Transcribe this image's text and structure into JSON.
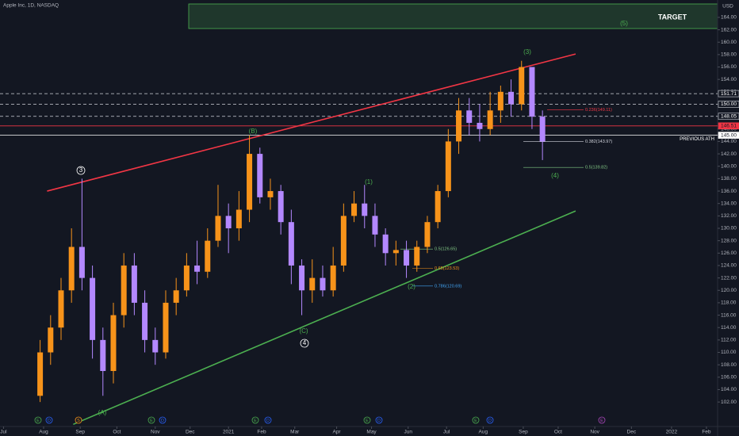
{
  "chart_data": {
    "type": "candlestick",
    "title": "Apple Inc, 1D, NASDAQ",
    "currency": "USD",
    "up_color": "#f7931a",
    "down_color": "#b388ff",
    "candles": {
      "x": [
        23,
        29,
        35,
        41,
        47,
        53,
        59,
        65,
        71,
        77,
        83,
        89,
        95,
        101,
        107,
        113,
        119,
        125,
        131,
        137,
        143,
        149,
        155,
        161,
        167,
        173,
        179,
        185,
        191,
        197,
        203,
        209,
        215,
        221,
        227,
        233,
        239,
        245,
        251,
        257,
        263,
        269,
        275,
        281,
        287,
        293,
        299,
        305,
        311
      ],
      "open": [
        103,
        110,
        114,
        120,
        127,
        122,
        112,
        107,
        116,
        124,
        118,
        112,
        110,
        118,
        120,
        124,
        123,
        128,
        132,
        130,
        133,
        142,
        135,
        136,
        131,
        124,
        120,
        122,
        120,
        124,
        132,
        134,
        132,
        129,
        126,
        126.5,
        124,
        127,
        131,
        136,
        144,
        149,
        147,
        146,
        149,
        152,
        150,
        156,
        148
      ],
      "high": [
        112,
        116,
        122,
        130,
        138,
        124,
        114,
        118,
        126,
        126,
        120,
        114,
        120,
        122,
        126,
        128,
        130,
        137,
        134,
        136,
        145,
        143,
        138,
        137,
        133,
        125,
        125,
        124,
        127,
        134,
        136,
        137,
        134,
        130,
        128,
        128,
        128,
        132,
        137,
        146,
        151,
        151,
        150,
        152,
        153,
        154,
        157,
        156,
        149
      ],
      "low": [
        102,
        108,
        112,
        118,
        120,
        109,
        103,
        105,
        114,
        116,
        110,
        108,
        109,
        116,
        119,
        121,
        122,
        127,
        126,
        128,
        131,
        134,
        133,
        129,
        121,
        116,
        118,
        119,
        119,
        123,
        131,
        130,
        127,
        124,
        124,
        122,
        123,
        126,
        130,
        135,
        142,
        145,
        144,
        145,
        147,
        148,
        149,
        146,
        141
      ],
      "close": [
        110,
        114,
        120,
        127,
        122,
        112,
        107,
        116,
        124,
        118,
        112,
        110,
        118,
        120,
        124,
        123,
        128,
        132,
        130,
        133,
        142,
        135,
        136,
        131,
        124,
        120,
        122,
        120,
        124,
        132,
        134,
        132,
        129,
        126,
        126.5,
        124,
        127,
        131,
        136,
        144,
        149,
        147,
        146,
        149,
        152,
        150,
        156,
        148,
        144
      ]
    },
    "xlim": [
      0,
      411.4
    ],
    "xticks": [
      {
        "value": 2,
        "label": "Jul"
      },
      {
        "value": 25,
        "label": "Aug"
      },
      {
        "value": 46,
        "label": "Sep"
      },
      {
        "value": 67,
        "label": "Oct"
      },
      {
        "value": 89,
        "label": "Nov"
      },
      {
        "value": 109,
        "label": "Dec"
      },
      {
        "value": 131,
        "label": "2021"
      },
      {
        "value": 150,
        "label": "Feb"
      },
      {
        "value": 169,
        "label": "Mar"
      },
      {
        "value": 193,
        "label": "Apr"
      },
      {
        "value": 213,
        "label": "May"
      },
      {
        "value": 234,
        "label": "Jun"
      },
      {
        "value": 256,
        "label": "Jul"
      },
      {
        "value": 277,
        "label": "Aug"
      },
      {
        "value": 300,
        "label": "Sep"
      },
      {
        "value": 320,
        "label": "Oct"
      },
      {
        "value": 341,
        "label": "Nov"
      },
      {
        "value": 362,
        "label": "Dec"
      },
      {
        "value": 385,
        "label": "2022"
      },
      {
        "value": 405,
        "label": "Feb"
      }
    ],
    "ylim": [
      97.8,
      166.8
    ],
    "yticks": [
      {
        "value": 102,
        "label": "102.00"
      },
      {
        "value": 104,
        "label": "104.00"
      },
      {
        "value": 106,
        "label": "106.00"
      },
      {
        "value": 108,
        "label": "108.00"
      },
      {
        "value": 110,
        "label": "110.00"
      },
      {
        "value": 112,
        "label": "112.00"
      },
      {
        "value": 114,
        "label": "114.00"
      },
      {
        "value": 116,
        "label": "116.00"
      },
      {
        "value": 118,
        "label": "118.00"
      },
      {
        "value": 120,
        "label": "120.00"
      },
      {
        "value": 122,
        "label": "122.00"
      },
      {
        "value": 124,
        "label": "124.00"
      },
      {
        "value": 126,
        "label": "126.00"
      },
      {
        "value": 128,
        "label": "128.00"
      },
      {
        "value": 130,
        "label": "130.00"
      },
      {
        "value": 132,
        "label": "132.00"
      },
      {
        "value": 134,
        "label": "134.00"
      },
      {
        "value": 136,
        "label": "136.00"
      },
      {
        "value": 138,
        "label": "138.00"
      },
      {
        "value": 140,
        "label": "140.00"
      },
      {
        "value": 142,
        "label": "142.00"
      },
      {
        "value": 144,
        "label": "144.00"
      },
      {
        "value": 146,
        "label": "146.00"
      },
      {
        "value": 148,
        "label": "148.00"
      },
      {
        "value": 150,
        "label": "150.00"
      },
      {
        "value": 152,
        "label": "152.00"
      },
      {
        "value": 154,
        "label": "154.00"
      },
      {
        "value": 156,
        "label": "156.00"
      },
      {
        "value": 158,
        "label": "158.00"
      },
      {
        "value": 160,
        "label": "160.00"
      },
      {
        "value": 162,
        "label": "162.00"
      },
      {
        "value": 164,
        "label": "164.00"
      }
    ],
    "levels": [
      {
        "value": 151.71,
        "label": "151.71",
        "color": "#d1d4dc",
        "dashed": true
      },
      {
        "value": 150,
        "label": "150.00",
        "color": "#d1d4dc",
        "dashed": true
      },
      {
        "value": 148.05,
        "label": "148.05",
        "color": "#d1d4dc",
        "dashed": true
      },
      {
        "value": 146.51,
        "label": "146.51",
        "color": "#f23645",
        "dashed": false
      },
      {
        "value": 145,
        "label": "145.00",
        "color": "#ffffff",
        "dashed": false,
        "note": "PREVIOUS ATH"
      }
    ],
    "trendlines": [
      {
        "color": "#f23645",
        "x": [
          27,
          330
        ],
        "y": [
          136,
          158.1
        ]
      },
      {
        "color": "#4caf50",
        "x": [
          42,
          330
        ],
        "y": [
          98.4,
          132.8
        ]
      }
    ],
    "fib_levels": [
      {
        "label": "0.236(149.11)",
        "value": 149.11,
        "color": "#f23645"
      },
      {
        "label": "0.382(143.97)",
        "value": 143.97,
        "color": "#d1d4dc"
      },
      {
        "label": "0.5(139.82)",
        "value": 139.82,
        "color": "#81c784"
      },
      {
        "label": "0.5(126.65)",
        "value": 126.65,
        "color": "#81c784"
      },
      {
        "label": "0.65(123.53)",
        "value": 123.53,
        "color": "#f7931a"
      },
      {
        "label": "0.786(120.69)",
        "value": 120.69,
        "color": "#42a5f5"
      }
    ],
    "target_label": "TARGET",
    "waves": [
      "(5)",
      "(3)",
      "(B)",
      "3",
      "(1)",
      "(4)",
      "(2)",
      "(C)",
      "4",
      "(A)"
    ],
    "events": [
      {
        "label": "E",
        "color": "#4caf50"
      },
      {
        "label": "D",
        "color": "#2962ff"
      },
      {
        "label": "S",
        "color": "#f7931a"
      },
      {
        "label": "E",
        "color": "#4caf50"
      },
      {
        "label": "D",
        "color": "#2962ff"
      },
      {
        "label": "E",
        "color": "#4caf50"
      },
      {
        "label": "D",
        "color": "#2962ff"
      },
      {
        "label": "E",
        "color": "#4caf50"
      },
      {
        "label": "D",
        "color": "#2962ff"
      },
      {
        "label": "E",
        "color": "#4caf50"
      },
      {
        "label": "D",
        "color": "#2962ff"
      },
      {
        "label": "E",
        "color": "#ab47bc"
      }
    ]
  }
}
